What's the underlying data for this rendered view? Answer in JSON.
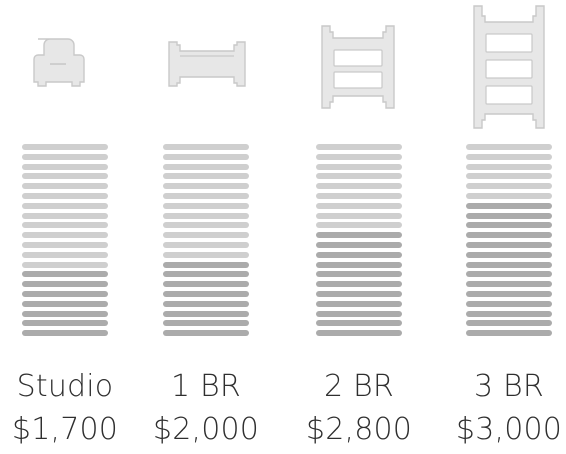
{
  "units": [
    {
      "label": "Studio",
      "price": "$1,700",
      "bar_total": 20,
      "bar_dark_from": 13,
      "bar_dark_color": "#ababab",
      "bar_light_color": "#cfcfcf",
      "icon": "studio-unit-icon"
    },
    {
      "label": "1 BR",
      "price": "$2,000",
      "bar_total": 20,
      "bar_dark_from": 12,
      "bar_dark_color": "#ababab",
      "bar_light_color": "#cfcfcf",
      "icon": "one-bedroom-unit-icon"
    },
    {
      "label": "2 BR",
      "price": "$2,800",
      "bar_total": 20,
      "bar_dark_from": 9,
      "bar_dark_color": "#ababab",
      "bar_light_color": "#cfcfcf",
      "icon": "two-bedroom-unit-icon"
    },
    {
      "label": "3 BR",
      "price": "$3,000",
      "bar_total": 20,
      "bar_dark_from": 6,
      "bar_dark_color": "#ababab",
      "bar_light_color": "#cfcfcf",
      "icon": "three-bedroom-unit-icon"
    }
  ]
}
